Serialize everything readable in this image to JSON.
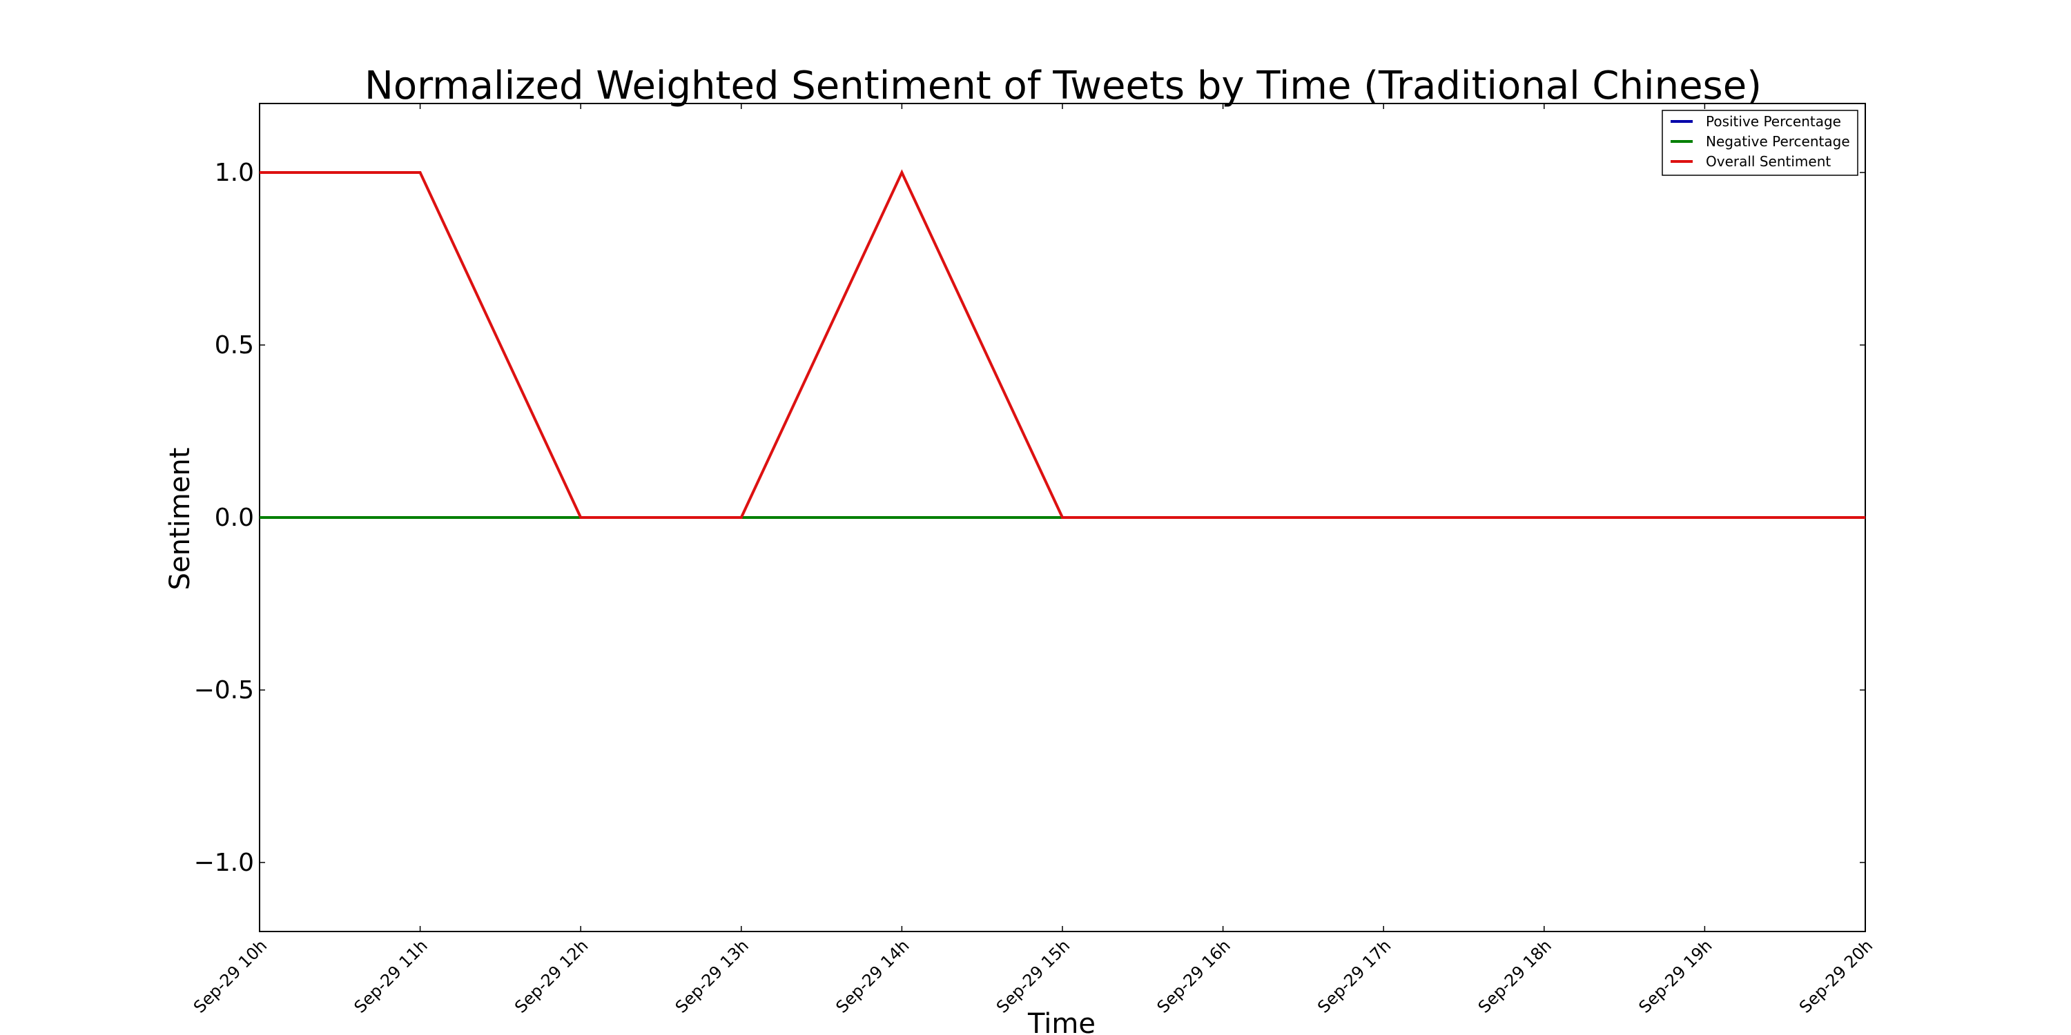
{
  "chart_data": {
    "type": "line",
    "title": "Normalized Weighted Sentiment of Tweets by Time (Traditional Chinese)",
    "xlabel": "Time",
    "ylabel": "Sentiment",
    "categories": [
      "Sep-29 10h",
      "Sep-29 11h",
      "Sep-29 12h",
      "Sep-29 13h",
      "Sep-29 14h",
      "Sep-29 15h",
      "Sep-29 16h",
      "Sep-29 17h",
      "Sep-29 18h",
      "Sep-29 19h",
      "Sep-29 20h"
    ],
    "ylim": [
      -1.2,
      1.2
    ],
    "yticks": [
      1.0,
      0.5,
      0.0,
      -0.5,
      -1.0
    ],
    "ytick_labels": [
      "1.0",
      "0.5",
      "0.0",
      "−0.5",
      "−1.0"
    ],
    "grid": false,
    "legend_position": "top-right",
    "series": [
      {
        "name": "Positive Percentage",
        "color": "#0000aa",
        "values": [
          0,
          0,
          0,
          0,
          0,
          0,
          0,
          0,
          0,
          0,
          0
        ]
      },
      {
        "name": "Negative Percentage",
        "color": "#007f00",
        "values": [
          0,
          0,
          0,
          0,
          0,
          0,
          0,
          0,
          0,
          0,
          0
        ]
      },
      {
        "name": "Overall Sentiment",
        "color": "#dd1111",
        "values": [
          1.0,
          1.0,
          0,
          0,
          1.0,
          0,
          0,
          0,
          0,
          0,
          0
        ]
      }
    ]
  }
}
